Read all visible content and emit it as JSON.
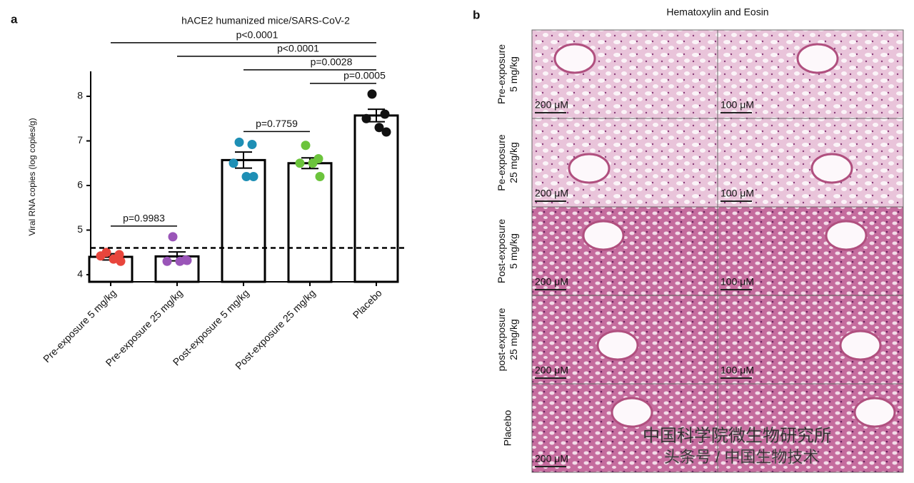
{
  "chart_data": {
    "type": "bar",
    "panel_label": "a",
    "title": "hACE2 humanized mice/SARS-CoV-2",
    "y_label": "Viral RNA copies (log copies/g)",
    "categories": [
      "Pre-exposure 5 mg/kg",
      "Pre-exposure 25 mg/kg",
      "Post-exposure 5 mg/kg",
      "Post-exposure 25 mg/kg",
      "Placebo"
    ],
    "values": [
      4.4,
      4.41,
      6.57,
      6.5,
      7.57
    ],
    "errors": [
      0.07,
      0.1,
      0.18,
      0.12,
      0.14
    ],
    "points": [
      [
        4.5,
        4.45,
        4.42,
        4.35,
        4.3
      ],
      [
        4.85,
        4.33,
        4.3,
        4.3,
        4.32
      ],
      [
        6.97,
        6.92,
        6.5,
        6.2,
        6.2
      ],
      [
        6.9,
        6.6,
        6.5,
        6.5,
        6.2
      ],
      [
        8.05,
        7.6,
        7.5,
        7.3,
        7.2
      ]
    ],
    "point_colors": [
      "#e8453c",
      "#9a55b8",
      "#1e8fb5",
      "#6cc43c",
      "#111111"
    ],
    "reference_line": 4.6,
    "ylim": [
      3.84,
      8.56
    ],
    "yticks": [
      4,
      5,
      6,
      7,
      8
    ],
    "comparisons": [
      {
        "between": [
          0,
          4
        ],
        "label": "p<0.0001"
      },
      {
        "between": [
          1,
          4
        ],
        "label": "p<0.0001"
      },
      {
        "between": [
          2,
          4
        ],
        "label": "p=0.0028"
      },
      {
        "between": [
          3,
          4
        ],
        "label": "p=0.0005"
      },
      {
        "between": [
          0,
          1
        ],
        "label": "p=0.9983"
      },
      {
        "between": [
          2,
          3
        ],
        "label": "p=0.7759"
      }
    ]
  },
  "panel_b": {
    "panel_label": "b",
    "title": "Hematoxylin and Eosin",
    "rows": [
      [
        "Pre-exposure",
        "5 mg/kg"
      ],
      [
        "Pe-exposure",
        "25 mg/kg"
      ],
      [
        "Post-exposure",
        "5 mg/kg"
      ],
      [
        "post-exposure",
        "25 mg/kg"
      ],
      [
        "Placebo"
      ]
    ],
    "scale_labels": [
      "200 μM",
      "100 μM"
    ],
    "watermarks": [
      "中国科学院微生物研究所",
      "头条号 / 中国生物技术"
    ]
  }
}
